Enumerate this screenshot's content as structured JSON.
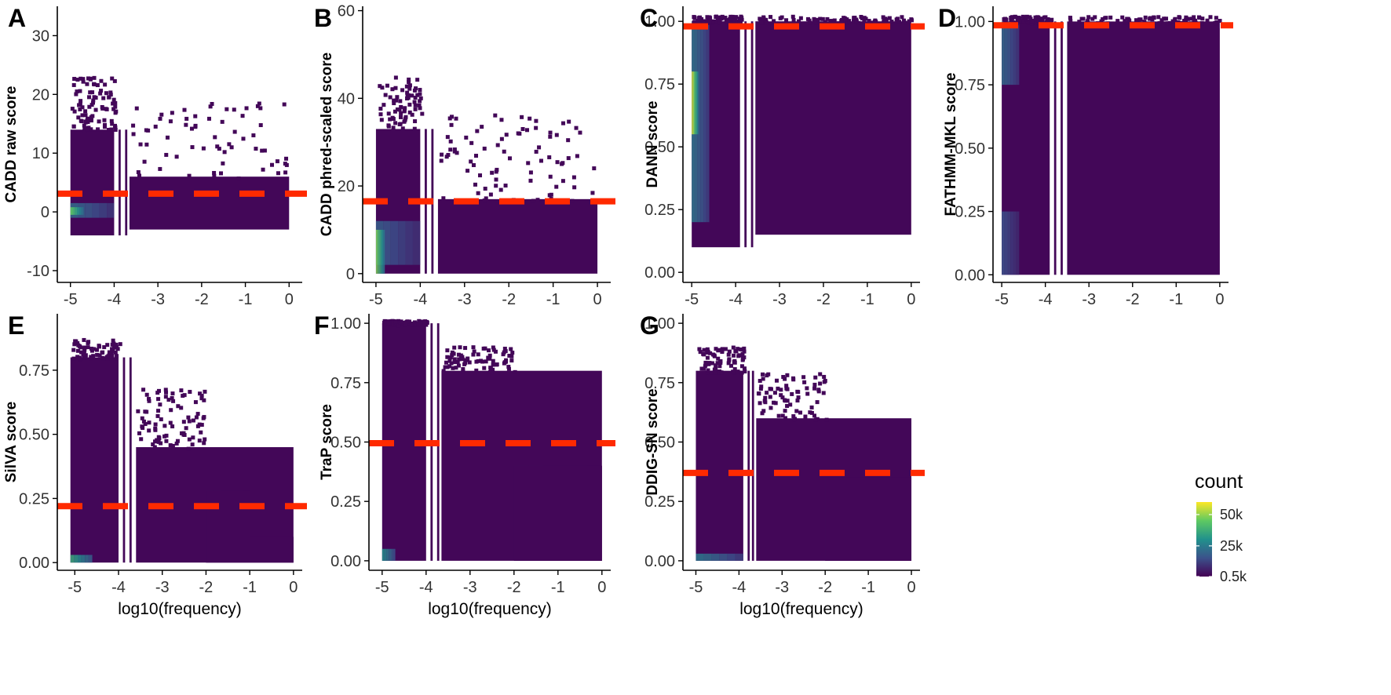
{
  "chart_data": [
    {
      "panel_label": "A",
      "type": "heatmap",
      "xlabel": "",
      "ylabel": "CADD raw score",
      "xlim": [
        -5.3,
        0.3
      ],
      "ylim": [
        -12,
        35
      ],
      "xticks": [
        -5,
        -4,
        -3,
        -2,
        -1,
        0
      ],
      "xtick_labels": [
        "-5",
        "-4",
        "-3",
        "-2",
        "-1",
        "0"
      ],
      "yticks": [
        -10,
        0,
        10,
        20,
        30
      ],
      "ytick_labels": [
        "-10",
        "0",
        "10",
        "20",
        "30"
      ],
      "threshold": 3.1,
      "column_blocks": [
        [
          -5.0,
          -4.0
        ],
        [
          -3.9,
          -3.85
        ],
        [
          -3.75,
          -3.7
        ],
        [
          -3.65,
          0.0
        ]
      ],
      "density_bands": [
        {
          "x": [
            -5.0,
            -4.0
          ],
          "y": [
            -4,
            14
          ],
          "level": 0.08
        },
        {
          "x": [
            -3.65,
            0.0
          ],
          "y": [
            -3,
            6
          ],
          "level": 0.05
        },
        {
          "x": [
            -5.0,
            -4.0
          ],
          "y": [
            -1,
            1.5
          ],
          "level": 0.35
        },
        {
          "x": [
            -5.0,
            -4.7
          ],
          "y": [
            -0.5,
            0.8
          ],
          "level": 0.75
        }
      ]
    },
    {
      "panel_label": "B",
      "type": "heatmap",
      "xlabel": "",
      "ylabel": "CADD phred-scaled score",
      "xlim": [
        -5.3,
        0.3
      ],
      "ylim": [
        -2,
        61
      ],
      "xticks": [
        -5,
        -4,
        -3,
        -2,
        -1,
        0
      ],
      "xtick_labels": [
        "-5",
        "-4",
        "-3",
        "-2",
        "-1",
        "0"
      ],
      "yticks": [
        0,
        20,
        40,
        60
      ],
      "ytick_labels": [
        "0",
        "20",
        "40",
        "60"
      ],
      "threshold": 16.5,
      "column_blocks": [
        [
          -5.0,
          -4.0
        ],
        [
          -3.9,
          -3.85
        ],
        [
          -3.75,
          -3.7
        ],
        [
          -3.6,
          0.0
        ]
      ],
      "density_bands": [
        {
          "x": [
            -5.0,
            -4.0
          ],
          "y": [
            0,
            33
          ],
          "level": 0.08
        },
        {
          "x": [
            -3.6,
            0.0
          ],
          "y": [
            0,
            17
          ],
          "level": 0.05
        },
        {
          "x": [
            -5.0,
            -4.0
          ],
          "y": [
            2,
            12
          ],
          "level": 0.3
        },
        {
          "x": [
            -5.0,
            -4.8
          ],
          "y": [
            0,
            10
          ],
          "level": 0.8
        }
      ]
    },
    {
      "panel_label": "C",
      "type": "heatmap",
      "xlabel": "",
      "ylabel": "DANN score",
      "xlim": [
        -5.2,
        0.2
      ],
      "ylim": [
        -0.04,
        1.06
      ],
      "xticks": [
        -5,
        -4,
        -3,
        -2,
        -1,
        0
      ],
      "xtick_labels": [
        "-5",
        "-4",
        "-3",
        "-2",
        "-1",
        "0"
      ],
      "yticks": [
        0,
        0.25,
        0.5,
        0.75,
        1.0
      ],
      "ytick_labels": [
        "0.00",
        "0.25",
        "0.50",
        "0.75",
        "1.00"
      ],
      "threshold": 0.98,
      "column_blocks": [
        [
          -5.0,
          -3.9
        ],
        [
          -3.8,
          -3.75
        ],
        [
          -3.65,
          -3.6
        ],
        [
          -3.55,
          0.0
        ]
      ],
      "density_bands": [
        {
          "x": [
            -5.0,
            -3.9
          ],
          "y": [
            0.1,
            1.0
          ],
          "level": 0.1
        },
        {
          "x": [
            -3.55,
            0.0
          ],
          "y": [
            0.15,
            1.0
          ],
          "level": 0.05
        },
        {
          "x": [
            -5.0,
            -4.6
          ],
          "y": [
            0.2,
            1.0
          ],
          "level": 0.4
        },
        {
          "x": [
            -5.0,
            -4.85
          ],
          "y": [
            0.55,
            0.8
          ],
          "level": 0.95
        }
      ]
    },
    {
      "panel_label": "D",
      "type": "heatmap",
      "xlabel": "",
      "ylabel": "FATHMM-MKL score",
      "xlim": [
        -5.2,
        0.2
      ],
      "ylim": [
        -0.03,
        1.06
      ],
      "xticks": [
        -5,
        -4,
        -3,
        -2,
        -1,
        0
      ],
      "xtick_labels": [
        "-5",
        "-4",
        "-3",
        "-2",
        "-1",
        "0"
      ],
      "yticks": [
        0,
        0.25,
        0.5,
        0.75,
        1.0
      ],
      "ytick_labels": [
        "0.00",
        "0.25",
        "0.50",
        "0.75",
        "1.00"
      ],
      "threshold": 0.985,
      "column_blocks": [
        [
          -5.0,
          -3.9
        ],
        [
          -3.8,
          -3.75
        ],
        [
          -3.65,
          -3.6
        ],
        [
          -3.5,
          0.0
        ]
      ],
      "density_bands": [
        {
          "x": [
            -5.0,
            -3.9
          ],
          "y": [
            0.0,
            1.0
          ],
          "level": 0.08
        },
        {
          "x": [
            -3.5,
            0.0
          ],
          "y": [
            0.0,
            1.0
          ],
          "level": 0.04
        },
        {
          "x": [
            -5.0,
            -4.6
          ],
          "y": [
            0.75,
            1.0
          ],
          "level": 0.35
        },
        {
          "x": [
            -5.0,
            -4.6
          ],
          "y": [
            0.0,
            0.25
          ],
          "level": 0.25
        }
      ]
    },
    {
      "panel_label": "E",
      "type": "heatmap",
      "xlabel": "log10(frequency)",
      "ylabel": "SilVA score",
      "xlim": [
        -5.4,
        0.2
      ],
      "ylim": [
        -0.03,
        0.97
      ],
      "xticks": [
        -5,
        -4,
        -3,
        -2,
        -1,
        0
      ],
      "xtick_labels": [
        "-5",
        "-4",
        "-3",
        "-2",
        "-1",
        "0"
      ],
      "yticks": [
        0,
        0.25,
        0.5,
        0.75
      ],
      "ytick_labels": [
        "0.00",
        "0.25",
        "0.50",
        "0.75"
      ],
      "threshold": 0.22,
      "column_blocks": [
        [
          -5.1,
          -4.0
        ],
        [
          -3.9,
          -3.85
        ],
        [
          -3.75,
          -3.7
        ],
        [
          -3.6,
          0.0
        ]
      ],
      "density_bands": [
        {
          "x": [
            -5.1,
            -4.0
          ],
          "y": [
            0.0,
            0.8
          ],
          "level": 0.07
        },
        {
          "x": [
            -3.6,
            -2.0
          ],
          "y": [
            0.0,
            0.45
          ],
          "level": 0.05
        },
        {
          "x": [
            -2.0,
            -1.0
          ],
          "y": [
            0.0,
            0.28
          ],
          "level": 0.05
        },
        {
          "x": [
            -1.0,
            0.0
          ],
          "y": [
            0.0,
            0.1
          ],
          "level": 0.04
        },
        {
          "x": [
            -5.1,
            -4.6
          ],
          "y": [
            0.0,
            0.03
          ],
          "level": 0.6
        }
      ]
    },
    {
      "panel_label": "F",
      "type": "heatmap",
      "xlabel": "log10(frequency)",
      "ylabel": "TraP score",
      "xlim": [
        -5.3,
        0.2
      ],
      "ylim": [
        -0.04,
        1.04
      ],
      "xticks": [
        -5,
        -4,
        -3,
        -2,
        -1,
        0
      ],
      "xtick_labels": [
        "-5",
        "-4",
        "-3",
        "-2",
        "-1",
        "0"
      ],
      "yticks": [
        0,
        0.25,
        0.5,
        0.75,
        1.0
      ],
      "ytick_labels": [
        "0.00",
        "0.25",
        "0.50",
        "0.75",
        "1.00"
      ],
      "threshold": 0.495,
      "column_blocks": [
        [
          -5.0,
          -4.0
        ],
        [
          -3.9,
          -3.85
        ],
        [
          -3.75,
          -3.7
        ],
        [
          -3.65,
          0.0
        ]
      ],
      "density_bands": [
        {
          "x": [
            -5.0,
            -4.0
          ],
          "y": [
            0.0,
            1.0
          ],
          "level": 0.07
        },
        {
          "x": [
            -3.65,
            -2.0
          ],
          "y": [
            0.0,
            0.8
          ],
          "level": 0.05
        },
        {
          "x": [
            -2.0,
            0.0
          ],
          "y": [
            0.0,
            0.4
          ],
          "level": 0.05
        },
        {
          "x": [
            -5.0,
            -4.7
          ],
          "y": [
            0.0,
            0.05
          ],
          "level": 0.5
        }
      ]
    },
    {
      "panel_label": "G",
      "type": "heatmap",
      "xlabel": "log10(frequency)",
      "ylabel": "DDIG-SN score",
      "xlim": [
        -5.3,
        0.2
      ],
      "ylim": [
        -0.04,
        1.04
      ],
      "xticks": [
        -5,
        -4,
        -3,
        -2,
        -1,
        0
      ],
      "xtick_labels": [
        "-5",
        "-4",
        "-3",
        "-2",
        "-1",
        "0"
      ],
      "yticks": [
        0,
        0.25,
        0.5,
        0.75,
        1.0
      ],
      "ytick_labels": [
        "0.00",
        "0.25",
        "0.50",
        "0.75",
        "1.00"
      ],
      "threshold": 0.37,
      "column_blocks": [
        [
          -5.0,
          -3.9
        ],
        [
          -3.8,
          -3.75
        ],
        [
          -3.7,
          -3.65
        ],
        [
          -3.6,
          0.0
        ]
      ],
      "density_bands": [
        {
          "x": [
            -5.0,
            -3.9
          ],
          "y": [
            0.0,
            0.8
          ],
          "level": 0.07
        },
        {
          "x": [
            -3.6,
            -2.0
          ],
          "y": [
            0.0,
            0.6
          ],
          "level": 0.05
        },
        {
          "x": [
            -2.0,
            0.0
          ],
          "y": [
            0.0,
            0.35
          ],
          "level": 0.05
        },
        {
          "x": [
            -5.0,
            -3.9
          ],
          "y": [
            0.0,
            0.03
          ],
          "level": 0.4
        }
      ]
    }
  ],
  "legend": {
    "title": "count",
    "labels": [
      "50k",
      "25k",
      "0.5k"
    ],
    "values": [
      50000,
      25000,
      500
    ],
    "range": [
      500,
      60000
    ]
  },
  "colors": {
    "threshold": "#ff2a00",
    "low": "#440154",
    "mid_low": "#3b528b",
    "mid": "#21918c",
    "mid_high": "#5ec962",
    "high": "#fde725"
  }
}
